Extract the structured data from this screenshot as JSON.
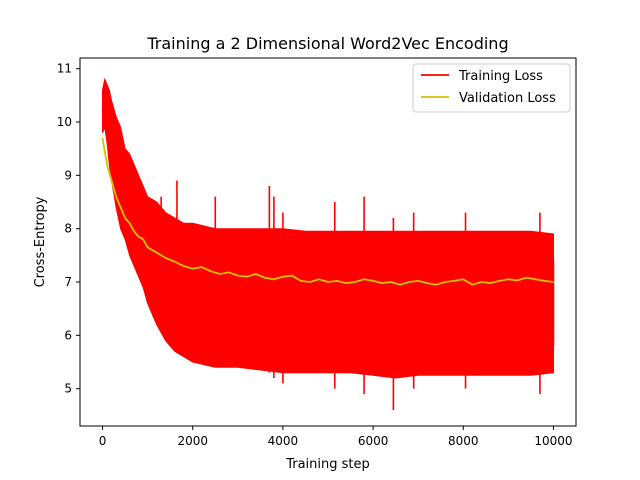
{
  "chart_data": {
    "type": "line",
    "title": "Training a 2 Dimensional Word2Vec Encoding",
    "xlabel": "Training step",
    "ylabel": "Cross-Entropy",
    "xlim": [
      -500,
      10500
    ],
    "ylim": [
      4.3,
      11.2
    ],
    "xticks": [
      0,
      2000,
      4000,
      6000,
      8000,
      10000
    ],
    "yticks": [
      5,
      6,
      7,
      8,
      9,
      10,
      11
    ],
    "grid": false,
    "legend_position": "top-right",
    "series": [
      {
        "name": "Training Loss",
        "color": "#ff0000",
        "x": [
          0,
          50,
          100,
          150,
          200,
          300,
          400,
          500,
          600,
          700,
          800,
          900,
          1000,
          1200,
          1400,
          1600,
          1800,
          2000,
          2500,
          3000,
          3500,
          4000,
          4500,
          5000,
          5500,
          6000,
          6500,
          7000,
          7500,
          8000,
          8500,
          9000,
          9500,
          10000
        ],
        "values": [
          10.2,
          10.6,
          10.3,
          10.0,
          9.6,
          9.3,
          9.0,
          8.8,
          8.6,
          8.4,
          8.2,
          8.0,
          7.7,
          7.4,
          7.2,
          7.0,
          6.9,
          6.8,
          6.75,
          6.7,
          6.65,
          6.6,
          6.6,
          6.55,
          6.55,
          6.55,
          6.5,
          6.5,
          6.5,
          6.5,
          6.5,
          6.5,
          6.5,
          6.5
        ],
        "band_low": [
          9.8,
          9.9,
          9.6,
          9.2,
          8.9,
          8.4,
          8.0,
          7.8,
          7.5,
          7.3,
          7.1,
          6.9,
          6.6,
          6.2,
          5.9,
          5.7,
          5.6,
          5.5,
          5.4,
          5.4,
          5.35,
          5.3,
          5.3,
          5.3,
          5.3,
          5.25,
          5.2,
          5.25,
          5.25,
          5.25,
          5.25,
          5.25,
          5.25,
          5.3
        ],
        "band_high": [
          10.6,
          10.8,
          10.7,
          10.6,
          10.4,
          10.1,
          9.9,
          9.5,
          9.4,
          9.2,
          9.0,
          8.8,
          8.6,
          8.5,
          8.3,
          8.2,
          8.1,
          8.1,
          8.0,
          8.0,
          8.0,
          8.0,
          7.95,
          7.95,
          7.95,
          7.95,
          7.95,
          7.95,
          7.95,
          7.95,
          7.95,
          7.95,
          7.95,
          7.9
        ],
        "spikes": [
          {
            "x": 1300,
            "low": 6.5,
            "high": 8.6
          },
          {
            "x": 1650,
            "low": 6.2,
            "high": 8.9
          },
          {
            "x": 2500,
            "low": 5.6,
            "high": 8.6
          },
          {
            "x": 3700,
            "low": 5.3,
            "high": 8.8
          },
          {
            "x": 3800,
            "low": 5.2,
            "high": 8.6
          },
          {
            "x": 4000,
            "low": 5.1,
            "high": 8.3
          },
          {
            "x": 5150,
            "low": 5.0,
            "high": 8.5
          },
          {
            "x": 5800,
            "low": 4.9,
            "high": 8.6
          },
          {
            "x": 6450,
            "low": 4.6,
            "high": 8.2
          },
          {
            "x": 6900,
            "low": 5.0,
            "high": 8.3
          },
          {
            "x": 8050,
            "low": 5.0,
            "high": 8.3
          },
          {
            "x": 9700,
            "low": 4.9,
            "high": 8.3
          },
          {
            "x": 10000,
            "low": 5.8,
            "high": 7.4
          }
        ]
      },
      {
        "name": "Validation Loss",
        "color": "#d4c200",
        "x": [
          0,
          100,
          200,
          300,
          400,
          500,
          600,
          700,
          800,
          900,
          1000,
          1200,
          1400,
          1600,
          1800,
          2000,
          2200,
          2400,
          2600,
          2800,
          3000,
          3200,
          3400,
          3600,
          3800,
          4000,
          4200,
          4400,
          4600,
          4800,
          5000,
          5200,
          5400,
          5600,
          5800,
          6000,
          6200,
          6400,
          6600,
          6800,
          7000,
          7200,
          7400,
          7600,
          7800,
          8000,
          8200,
          8400,
          8600,
          8800,
          9000,
          9200,
          9400,
          9600,
          9800,
          10000
        ],
        "values": [
          9.7,
          9.2,
          8.9,
          8.6,
          8.4,
          8.2,
          8.1,
          7.95,
          7.85,
          7.8,
          7.65,
          7.55,
          7.45,
          7.38,
          7.3,
          7.25,
          7.28,
          7.2,
          7.15,
          7.18,
          7.12,
          7.1,
          7.15,
          7.08,
          7.05,
          7.1,
          7.12,
          7.02,
          7.0,
          7.05,
          7.0,
          7.02,
          6.98,
          7.0,
          7.05,
          7.02,
          6.98,
          7.0,
          6.95,
          7.0,
          7.02,
          6.98,
          6.95,
          7.0,
          7.02,
          7.05,
          6.95,
          7.0,
          6.98,
          7.02,
          7.05,
          7.03,
          7.08,
          7.05,
          7.02,
          7.0
        ]
      }
    ]
  }
}
